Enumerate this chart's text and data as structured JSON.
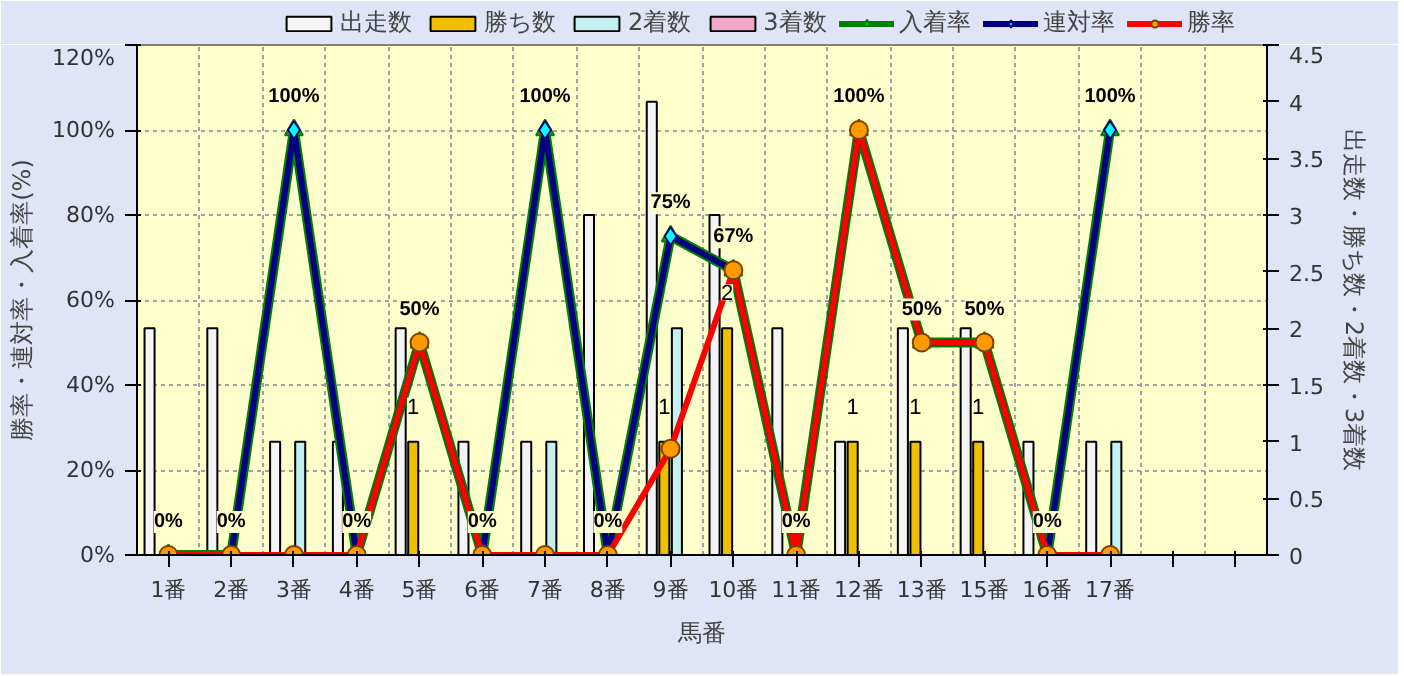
{
  "chart_data": {
    "type": "bar",
    "xlabel": "馬番",
    "ylabel": "勝率・連対率・入着率(%)",
    "y2label": "出走数・勝ち数・2着数・3着数",
    "categories": [
      "1番",
      "2番",
      "3番",
      "4番",
      "5番",
      "6番",
      "7番",
      "8番",
      "9番",
      "10番",
      "11番",
      "12番",
      "13番",
      "15番",
      "16番",
      "17番",
      null,
      null
    ],
    "series": [
      {
        "name": "出走数",
        "axis": "y2",
        "color": "#f4f4f4",
        "values": [
          2,
          2,
          1,
          1,
          2,
          1,
          1,
          3,
          4,
          3,
          2,
          1,
          2,
          2,
          1,
          1,
          null,
          null
        ]
      },
      {
        "name": "勝ち数",
        "axis": "y2",
        "color": "#f0c000",
        "values": [
          0,
          0,
          0,
          0,
          1,
          0,
          0,
          0,
          1,
          2,
          0,
          1,
          1,
          1,
          0,
          0,
          null,
          null
        ],
        "value_labels": [
          null,
          null,
          null,
          null,
          "1",
          null,
          null,
          null,
          "1",
          "2",
          null,
          "1",
          "1",
          "1",
          null,
          null,
          null,
          null
        ]
      },
      {
        "name": "2着数",
        "axis": "y2",
        "color": "#c4f0f0",
        "values": [
          0,
          0,
          1,
          0,
          0,
          0,
          1,
          0,
          2,
          0,
          0,
          0,
          0,
          0,
          0,
          1,
          null,
          null
        ]
      },
      {
        "name": "3着数",
        "axis": "y2",
        "color": "#f0a8c8",
        "values": [
          0,
          0,
          0,
          0,
          0,
          0,
          0,
          0,
          0,
          0,
          0,
          0,
          0,
          0,
          0,
          0,
          null,
          null
        ]
      },
      {
        "name": "入着率",
        "type": "line",
        "axis": "y",
        "color": "#008000",
        "marker": "triangle",
        "values": [
          0,
          0,
          100,
          0,
          50,
          0,
          100,
          0,
          75,
          67,
          0,
          100,
          50,
          50,
          0,
          100,
          null,
          null
        ],
        "value_labels": [
          "0%",
          "0%",
          "100%",
          "0%",
          "50%",
          "0%",
          "100%",
          "0%",
          "75%",
          "67%",
          "0%",
          "100%",
          "50%",
          "50%",
          "0%",
          "100%",
          null,
          null
        ]
      },
      {
        "name": "連対率",
        "type": "line",
        "axis": "y",
        "color": "#000080",
        "marker": "diamond",
        "values": [
          0,
          0,
          100,
          0,
          50,
          0,
          100,
          0,
          75,
          67,
          0,
          100,
          50,
          50,
          0,
          100,
          null,
          null
        ]
      },
      {
        "name": "勝率",
        "type": "line",
        "axis": "y",
        "color": "#ff0000",
        "marker": "circle",
        "values": [
          0,
          0,
          0,
          0,
          50,
          0,
          0,
          0,
          25,
          67,
          0,
          100,
          50,
          50,
          0,
          0,
          null,
          null
        ]
      }
    ],
    "ylim": [
      0,
      120
    ],
    "yticks": [
      {
        "value": 0,
        "label": "0%"
      },
      {
        "value": 20,
        "label": "20%"
      },
      {
        "value": 40,
        "label": "40%"
      },
      {
        "value": 60,
        "label": "60%"
      },
      {
        "value": 80,
        "label": "80%"
      },
      {
        "value": 100,
        "label": "100%"
      },
      {
        "value": 120,
        "label": "120%"
      }
    ],
    "y2lim": [
      0,
      4.5
    ],
    "y2ticks": [
      0,
      0.5,
      1,
      1.5,
      2,
      2.5,
      3,
      3.5,
      4,
      4.5
    ],
    "grid": true,
    "legend": "top"
  }
}
